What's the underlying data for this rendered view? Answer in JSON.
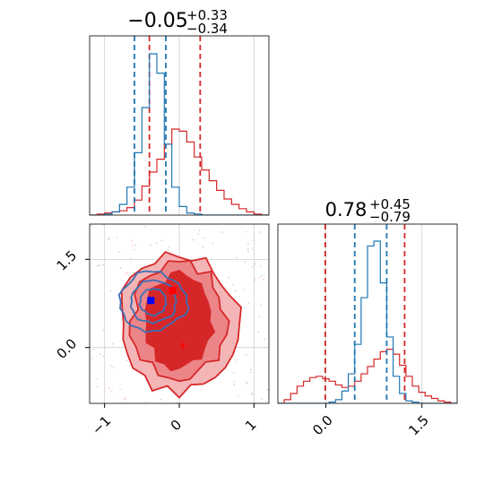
{
  "chart_data": [
    {
      "type": "histogram",
      "panel": "marginal-1",
      "title": {
        "base": "−0.05",
        "sup": "+0.33",
        "sub": "−0.34"
      },
      "xlim": [
        -1.2,
        1.2
      ],
      "grid": true,
      "tick_values": [
        -1,
        0,
        1
      ],
      "series": [
        {
          "color": "#d62728",
          "quantile_lines": [
            -0.4,
            0.28
          ],
          "x": [
            -1.15,
            -1.05,
            -0.95,
            -0.85,
            -0.75,
            -0.65,
            -0.55,
            -0.45,
            -0.35,
            -0.25,
            -0.15,
            -0.05,
            0.05,
            0.15,
            0.25,
            0.35,
            0.45,
            0.55,
            0.65,
            0.75,
            0.85,
            0.95,
            1.05,
            1.15
          ],
          "values": [
            0,
            1,
            2,
            3,
            4,
            7,
            14,
            27,
            40,
            52,
            66,
            80,
            78,
            68,
            54,
            42,
            32,
            23,
            15,
            10,
            6,
            3,
            1,
            0
          ]
        },
        {
          "color": "#1f77b4",
          "quantile_lines": [
            -0.6,
            -0.18
          ],
          "x": [
            -1.15,
            -1.05,
            -0.95,
            -0.85,
            -0.75,
            -0.65,
            -0.55,
            -0.45,
            -0.35,
            -0.25,
            -0.15,
            -0.05,
            0.05,
            0.15,
            0.25,
            0.35,
            0.45,
            0.55,
            0.65,
            0.75,
            0.85,
            0.95,
            1.05,
            1.15
          ],
          "values": [
            0,
            0,
            1,
            3,
            10,
            26,
            58,
            100,
            150,
            132,
            66,
            26,
            8,
            2,
            1,
            0,
            0,
            0,
            0,
            0,
            0,
            0,
            0,
            0
          ]
        }
      ],
      "ylim": [
        0,
        160
      ]
    },
    {
      "type": "histogram",
      "panel": "marginal-2",
      "title": {
        "base": "0.78",
        "sup": "+0.45",
        "sub": "−0.79"
      },
      "xlim": [
        -0.75,
        2.05
      ],
      "grid": true,
      "tick_values": [
        0.0,
        1.5
      ],
      "tick_labels": [
        "0.0",
        "1.5"
      ],
      "series": [
        {
          "color": "#d62728",
          "quantile_lines": [
            -0.01,
            1.23
          ],
          "x": [
            -0.7,
            -0.6,
            -0.5,
            -0.4,
            -0.3,
            -0.2,
            -0.1,
            0.0,
            0.1,
            0.2,
            0.3,
            0.4,
            0.5,
            0.6,
            0.7,
            0.8,
            0.9,
            1.0,
            1.1,
            1.2,
            1.3,
            1.4,
            1.5,
            1.6,
            1.7,
            1.8,
            1.9,
            2.0
          ],
          "values": [
            0,
            3,
            8,
            14,
            18,
            21,
            22,
            20,
            18,
            15,
            13,
            14,
            18,
            24,
            30,
            36,
            42,
            44,
            40,
            31,
            22,
            14,
            9,
            6,
            4,
            2,
            1,
            0
          ]
        },
        {
          "color": "#1f77b4",
          "quantile_lines": [
            0.45,
            0.95
          ],
          "x": [
            -0.7,
            -0.6,
            -0.5,
            -0.4,
            -0.3,
            -0.2,
            -0.1,
            0.0,
            0.1,
            0.2,
            0.3,
            0.4,
            0.5,
            0.6,
            0.7,
            0.8,
            0.9,
            1.0,
            1.1,
            1.2,
            1.3,
            1.4,
            1.5,
            1.6,
            1.7,
            1.8,
            1.9,
            2.0
          ],
          "values": [
            0,
            0,
            0,
            0,
            0,
            0,
            0,
            0,
            1,
            3,
            10,
            24,
            48,
            86,
            128,
            132,
            98,
            54,
            22,
            8,
            2,
            1,
            0,
            0,
            0,
            0,
            0,
            0
          ]
        }
      ],
      "ylim": [
        0,
        140
      ]
    },
    {
      "type": "contour",
      "panel": "joint",
      "xlim": [
        -1.2,
        1.2
      ],
      "ylim": [
        -0.95,
        2.1
      ],
      "grid": true,
      "x_ticks": [
        -1,
        0,
        1
      ],
      "y_ticks": [
        0.0,
        1.5
      ],
      "y_tick_labels": [
        "0.0",
        "1.5"
      ],
      "red_levels": [
        {
          "fill": "#f4b5b6",
          "cx": 0.0,
          "cy": 0.4,
          "rx": 0.78,
          "ry": 1.18
        },
        {
          "fill": "#ec8587",
          "cx": 0.0,
          "cy": 0.45,
          "rx": 0.62,
          "ry": 0.98
        },
        {
          "fill": "#d62728",
          "cx": 0.0,
          "cy": 0.45,
          "rx": 0.45,
          "ry": 0.78
        }
      ],
      "blue_levels": [
        {
          "cx": -0.35,
          "cy": 0.78,
          "rx": 0.18,
          "ry": 0.22
        },
        {
          "cx": -0.35,
          "cy": 0.78,
          "rx": 0.3,
          "ry": 0.36
        },
        {
          "cx": -0.35,
          "cy": 0.78,
          "rx": 0.45,
          "ry": 0.5
        }
      ],
      "markers": [
        {
          "name": "blue-point",
          "x": -0.38,
          "y": 0.8,
          "color": "#0000ff"
        },
        {
          "name": "red-point",
          "x": -0.09,
          "y": 0.97,
          "color": "#ff0000"
        },
        {
          "name": "red-cross",
          "x": 0.05,
          "y": 0.03,
          "color": "#ff0000"
        }
      ]
    }
  ]
}
